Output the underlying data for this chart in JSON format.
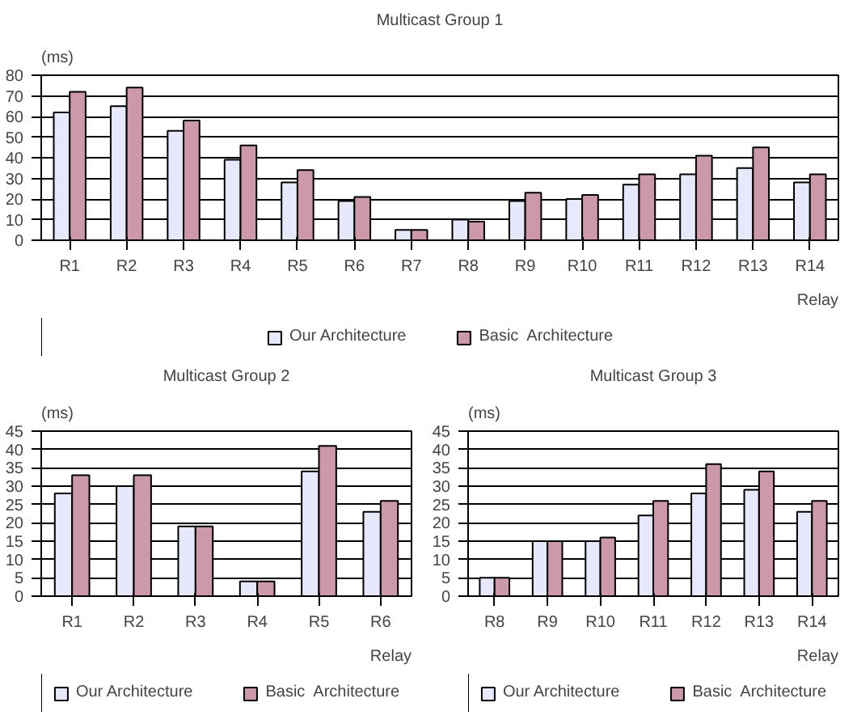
{
  "chart_data": [
    {
      "type": "bar",
      "title": "Multicast Group 1",
      "ylabel": "(ms)",
      "xlabel": "Relay",
      "categories": [
        "R1",
        "R2",
        "R3",
        "R4",
        "R5",
        "R6",
        "R7",
        "R8",
        "R9",
        "R10",
        "R11",
        "R12",
        "R13",
        "R14"
      ],
      "series": [
        {
          "name": "Our Architecture",
          "color": "#e8e8fc",
          "values": [
            62,
            65,
            53,
            39,
            28,
            19,
            5,
            10,
            19,
            20,
            27,
            32,
            35,
            28
          ]
        },
        {
          "name": "Basic  Architecture",
          "color": "#cc99aa",
          "values": [
            72,
            74,
            58,
            46,
            34,
            21,
            5,
            9,
            23,
            22,
            32,
            41,
            45,
            32
          ]
        }
      ],
      "ylim": [
        0,
        80
      ],
      "yticks": [
        0,
        10,
        20,
        30,
        40,
        50,
        60,
        70,
        80
      ],
      "grid": "y",
      "legend": "bottom"
    },
    {
      "type": "bar",
      "title": "Multicast Group 2",
      "ylabel": "(ms)",
      "xlabel": "Relay",
      "categories": [
        "R1",
        "R2",
        "R3",
        "R4",
        "R5",
        "R6"
      ],
      "series": [
        {
          "name": "Our Architecture",
          "color": "#e8e8fc",
          "values": [
            28,
            30,
            19,
            4,
            34,
            23
          ]
        },
        {
          "name": "Basic  Architecture",
          "color": "#cc99aa",
          "values": [
            33,
            33,
            19,
            4,
            41,
            26
          ]
        }
      ],
      "ylim": [
        0,
        45
      ],
      "yticks": [
        0,
        5,
        10,
        15,
        20,
        25,
        30,
        35,
        40,
        45
      ],
      "grid": "y",
      "legend": "bottom"
    },
    {
      "type": "bar",
      "title": "Multicast Group 3",
      "ylabel": "(ms)",
      "xlabel": "Relay",
      "categories": [
        "R8",
        "R9",
        "R10",
        "R11",
        "R12",
        "R13",
        "R14"
      ],
      "series": [
        {
          "name": "Our Architecture",
          "color": "#e8e8fc",
          "values": [
            5,
            15,
            15,
            22,
            28,
            29,
            23
          ]
        },
        {
          "name": "Basic  Architecture",
          "color": "#cc99aa",
          "values": [
            5,
            15,
            16,
            26,
            36,
            34,
            26
          ]
        }
      ],
      "ylim": [
        0,
        45
      ],
      "yticks": [
        0,
        5,
        10,
        15,
        20,
        25,
        30,
        35,
        40,
        45
      ],
      "grid": "y",
      "legend": "bottom"
    }
  ]
}
